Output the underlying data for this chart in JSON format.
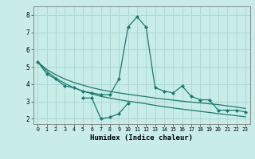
{
  "xlabel": "Humidex (Indice chaleur)",
  "x": [
    0,
    1,
    2,
    3,
    4,
    5,
    6,
    7,
    8,
    9,
    10,
    11,
    12,
    13,
    14,
    15,
    16,
    17,
    18,
    19,
    20,
    21,
    22,
    23
  ],
  "line1": [
    5.3,
    4.6,
    4.3,
    3.9,
    3.8,
    3.6,
    3.5,
    3.4,
    3.4,
    4.3,
    7.3,
    7.9,
    7.3,
    3.8,
    3.6,
    3.5,
    3.9,
    3.3,
    3.1,
    3.1,
    2.5,
    2.5,
    2.5,
    2.4
  ],
  "line2_x": [
    5,
    6,
    7,
    8,
    9,
    10
  ],
  "line2_y": [
    3.2,
    3.2,
    2.0,
    2.1,
    2.3,
    2.9
  ],
  "line3": [
    5.3,
    4.85,
    4.55,
    4.3,
    4.1,
    3.95,
    3.8,
    3.68,
    3.58,
    3.5,
    3.42,
    3.35,
    3.28,
    3.2,
    3.14,
    3.08,
    3.02,
    2.97,
    2.92,
    2.87,
    2.82,
    2.75,
    2.68,
    2.6
  ],
  "line4": [
    5.3,
    4.75,
    4.35,
    4.05,
    3.8,
    3.6,
    3.45,
    3.3,
    3.2,
    3.1,
    3.02,
    2.95,
    2.87,
    2.78,
    2.7,
    2.63,
    2.56,
    2.5,
    2.43,
    2.37,
    2.3,
    2.24,
    2.18,
    2.12
  ],
  "color": "#1a7a6e",
  "bg_color": "#c8ece8",
  "grid_color": "#aed8d4",
  "ylim": [
    1.7,
    8.5
  ],
  "xlim": [
    -0.5,
    23.5
  ]
}
